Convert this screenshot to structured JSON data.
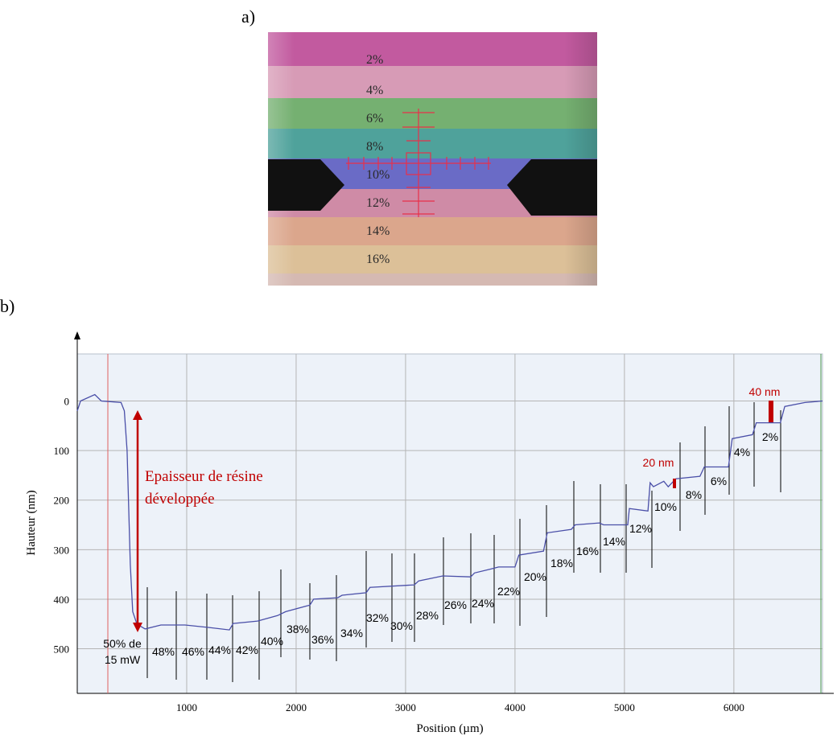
{
  "panel_a": {
    "label": "a)",
    "stripe_labels": [
      "2%",
      "4%",
      "6%",
      "8%",
      "10%",
      "12%",
      "14%",
      "16%"
    ]
  },
  "chart_data": {
    "type": "line",
    "label": "b)",
    "x_label": "Position (µm)",
    "y_label": "Hauteur (nm)",
    "color": "#4a4fa8",
    "x": [
      0,
      30,
      160,
      220,
      400,
      430,
      455,
      485,
      507,
      545,
      620,
      765,
      985,
      1205,
      1390,
      1425,
      1647,
      1830,
      1905,
      2125,
      2160,
      2380,
      2420,
      2640,
      2675,
      3080,
      3120,
      3340,
      3595,
      3630,
      3780,
      3850,
      4000,
      4035,
      4260,
      4295,
      4515,
      4550,
      4770,
      4810,
      5030,
      5045,
      5215,
      5235,
      5265,
      5360,
      5400,
      5470,
      5690,
      5730,
      5950,
      5985,
      6170,
      6205,
      6425,
      6465,
      6650,
      6810
    ],
    "values": [
      20,
      0,
      -13,
      0,
      3,
      20,
      100,
      330,
      425,
      450,
      460,
      452,
      452,
      457,
      462,
      449,
      444,
      433,
      425,
      412,
      400,
      397,
      392,
      387,
      376,
      371,
      363,
      353,
      355,
      347,
      339,
      335,
      335,
      311,
      303,
      266,
      259,
      250,
      246,
      250,
      250,
      217,
      222,
      165,
      173,
      162,
      173,
      157,
      152,
      133,
      133,
      76,
      68,
      44,
      44,
      11,
      3,
      0
    ],
    "xlim": [
      0,
      6810
    ],
    "ylim": [
      -95,
      590
    ],
    "y_inverted": true,
    "xticks": [
      1000,
      2000,
      3000,
      4000,
      5000,
      6000
    ],
    "yticks": [
      0,
      100,
      200,
      300,
      400,
      500
    ],
    "grid": true,
    "annotation": [
      "Epaisseur de résine",
      "développée"
    ],
    "reference_label": [
      "50% de",
      "15 mW"
    ],
    "step_labels": [
      "48%",
      "46%",
      "44%",
      "42%",
      "40%",
      "38%",
      "36%",
      "34%",
      "32%",
      "30%",
      "28%",
      "26%",
      "24%",
      "22%",
      "20%",
      "18%",
      "16%",
      "14%",
      "12%",
      "10%",
      "8%",
      "6%",
      "4%",
      "2%"
    ],
    "height_labels": [
      "20 nm",
      "40 nm"
    ]
  }
}
